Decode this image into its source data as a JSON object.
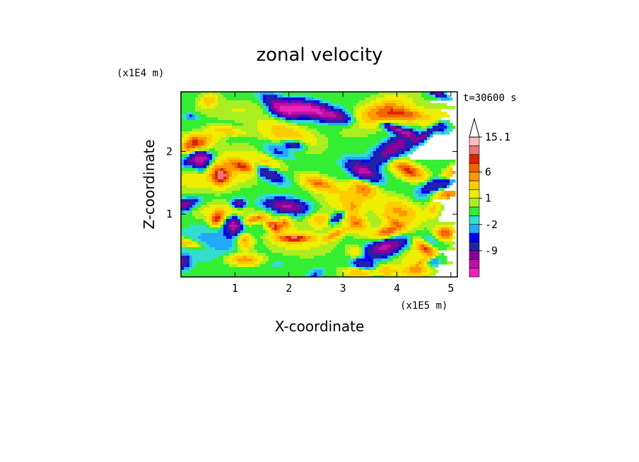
{
  "chart_data": {
    "type": "heatmap",
    "title": "zonal velocity",
    "xlabel": "X-coordinate",
    "ylabel": "Z-coordinate",
    "x_multiplier_label": "(x1E5 m)",
    "y_multiplier_label": "(x1E4 m)",
    "time_label": "t=30600 s",
    "xlim": [
      0,
      5.12
    ],
    "ylim": [
      0,
      2.95
    ],
    "x_ticks": [
      {
        "value": 1,
        "label": "1"
      },
      {
        "value": 2,
        "label": "2"
      },
      {
        "value": 3,
        "label": "3"
      },
      {
        "value": 4,
        "label": "4"
      },
      {
        "value": 5,
        "label": "5"
      }
    ],
    "y_ticks": [
      {
        "value": 1,
        "label": "1"
      },
      {
        "value": 2,
        "label": "2"
      }
    ],
    "colorbar": {
      "levels": [
        -15,
        -12,
        -9,
        -6,
        -3,
        -2,
        -1,
        0,
        1,
        2,
        4,
        6,
        8,
        10,
        12,
        15.1
      ],
      "colors": [
        "#ee22bb",
        "#bb11aa",
        "#880099",
        "#2222aa",
        "#0000ee",
        "#22aaff",
        "#33ddcc",
        "#33ee33",
        "#aaee22",
        "#eeee00",
        "#ffcc00",
        "#ff9900",
        "#ee6600",
        "#dd2200",
        "#ee7777",
        "#ffbbbb"
      ],
      "labels": [
        {
          "value": -9,
          "label": "-9"
        },
        {
          "value": -2,
          "label": "-2"
        },
        {
          "value": 1,
          "label": "1"
        },
        {
          "value": 6,
          "label": "6"
        },
        {
          "value": 15.1,
          "label": "15.1"
        }
      ],
      "extend": "max"
    },
    "grid": false
  }
}
